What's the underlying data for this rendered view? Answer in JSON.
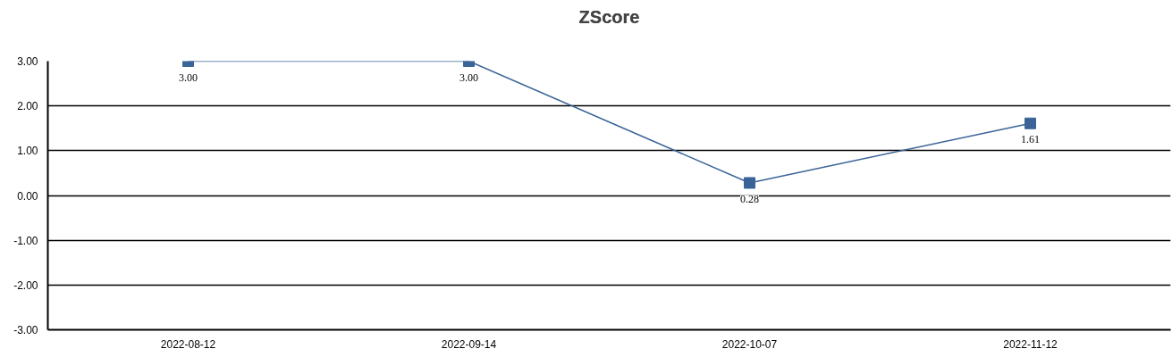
{
  "chart_data": {
    "type": "line",
    "title": "ZScore",
    "categories": [
      "2022-08-12",
      "2022-09-14",
      "2022-10-07",
      "2022-11-12"
    ],
    "series": [
      {
        "color": "#3a6497",
        "values": [
          3.0,
          3.0,
          0.28,
          1.61
        ],
        "value_labels": [
          "3.00",
          "3.00",
          "0.28",
          "1.61"
        ]
      }
    ],
    "ylim": [
      -3,
      3
    ],
    "yticks": [
      {
        "value": -3,
        "label": "-3.00"
      },
      {
        "value": -2,
        "label": "-2.00"
      },
      {
        "value": -1,
        "label": "-1.00"
      },
      {
        "value": 0,
        "label": "0.00"
      },
      {
        "value": 1,
        "label": "1.00"
      },
      {
        "value": 2,
        "label": "2.00"
      },
      {
        "value": 3,
        "label": "3.00"
      }
    ],
    "grid": "y",
    "marker": "square",
    "line_style": "solid"
  }
}
